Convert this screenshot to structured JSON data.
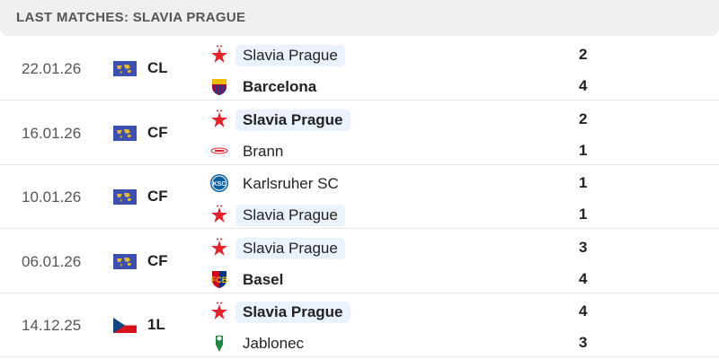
{
  "header": {
    "title": "LAST MATCHES: SLAVIA PRAGUE"
  },
  "colors": {
    "highlight": "#eaf3fd",
    "slavia_red": "#e8202a"
  },
  "matches": [
    {
      "date": "22.01.26",
      "competition": "CL",
      "flag": "world",
      "home": {
        "name": "Slavia Prague",
        "logo": "slavia",
        "score": "2",
        "highlight": true,
        "winner": false
      },
      "away": {
        "name": "Barcelona",
        "logo": "barcelona",
        "score": "4",
        "highlight": false,
        "winner": true
      }
    },
    {
      "date": "16.01.26",
      "competition": "CF",
      "flag": "world",
      "home": {
        "name": "Slavia Prague",
        "logo": "slavia",
        "score": "2",
        "highlight": true,
        "winner": true
      },
      "away": {
        "name": "Brann",
        "logo": "brann",
        "score": "1",
        "highlight": false,
        "winner": false
      }
    },
    {
      "date": "10.01.26",
      "competition": "CF",
      "flag": "world",
      "home": {
        "name": "Karlsruher SC",
        "logo": "ksc",
        "score": "1",
        "highlight": false,
        "winner": false
      },
      "away": {
        "name": "Slavia Prague",
        "logo": "slavia",
        "score": "1",
        "highlight": true,
        "winner": false
      }
    },
    {
      "date": "06.01.26",
      "competition": "CF",
      "flag": "world",
      "home": {
        "name": "Slavia Prague",
        "logo": "slavia",
        "score": "3",
        "highlight": true,
        "winner": false
      },
      "away": {
        "name": "Basel",
        "logo": "basel",
        "score": "4",
        "highlight": false,
        "winner": true
      }
    },
    {
      "date": "14.12.25",
      "competition": "1L",
      "flag": "czech",
      "home": {
        "name": "Slavia Prague",
        "logo": "slavia",
        "score": "4",
        "highlight": true,
        "winner": true
      },
      "away": {
        "name": "Jablonec",
        "logo": "jablonec",
        "score": "3",
        "highlight": false,
        "winner": false
      }
    }
  ]
}
